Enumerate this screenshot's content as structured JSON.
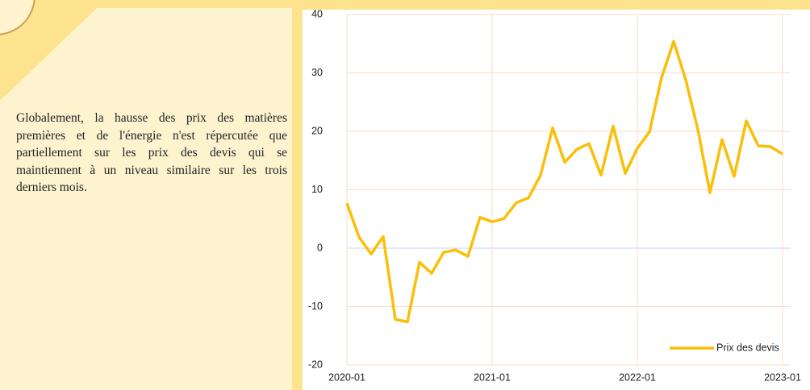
{
  "text": "Globalement, la hausse des prix des matières premières et de l'énergie n'est répercutée que partiellement sur les prix des devis qui se maintiennent à un niveau similaire sur les trois derniers mois.",
  "chart_data": {
    "type": "line",
    "x": [
      "2020-01",
      "2020-02",
      "2020-03",
      "2020-04",
      "2020-05",
      "2020-06",
      "2020-07",
      "2020-08",
      "2020-09",
      "2020-10",
      "2020-11",
      "2020-12",
      "2021-01",
      "2021-02",
      "2021-03",
      "2021-04",
      "2021-05",
      "2021-06",
      "2021-07",
      "2021-08",
      "2021-09",
      "2021-10",
      "2021-11",
      "2021-12",
      "2022-01",
      "2022-02",
      "2022-03",
      "2022-04",
      "2022-05",
      "2022-06",
      "2022-07",
      "2022-08",
      "2022-09",
      "2022-10",
      "2022-11",
      "2022-12",
      "2023-01"
    ],
    "series": [
      {
        "name": "Prix des devis",
        "color": "#fbbf0a",
        "values": [
          7.7,
          1.9,
          -1,
          2,
          -12.2,
          -12.6,
          -2.4,
          -4.3,
          -0.7,
          -0.3,
          -1.4,
          5.3,
          4.5,
          5.1,
          7.8,
          8.6,
          12.5,
          20.6,
          14.7,
          16.9,
          17.9,
          12.5,
          20.9,
          12.8,
          17.1,
          19.9,
          29.2,
          35.4,
          28.8,
          20.3,
          9.5,
          18.6,
          12.3,
          21.8,
          17.5,
          17.4,
          16.1
        ]
      }
    ],
    "ylim": [
      -20,
      40
    ],
    "yticks": [
      -20,
      -10,
      0,
      10,
      20,
      30,
      40
    ],
    "xticks": [
      "2020-01",
      "2021-01",
      "2022-01",
      "2023-01"
    ],
    "grid": true,
    "legend": "lower right"
  }
}
